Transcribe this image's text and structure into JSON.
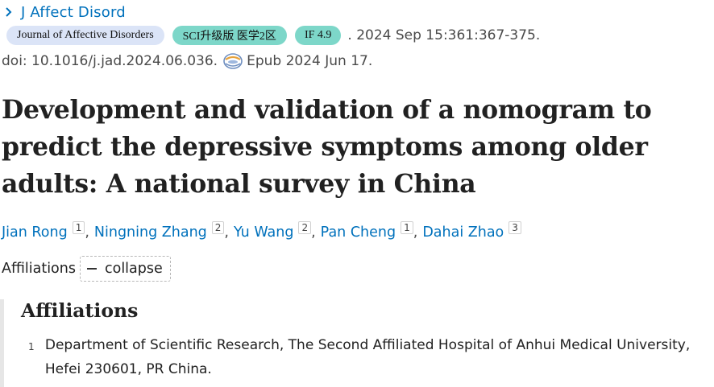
{
  "journal": {
    "abbrev": "J Affect Disord",
    "badges": {
      "journal_name": "Journal of Affective Disorders",
      "sci": "SCI升级版 医学2区",
      "impact_factor": "IF 4.9"
    },
    "citation": ". 2024 Sep 15:361:367-375.",
    "doi": "doi: 10.1016/j.jad.2024.06.036.",
    "epub": "Epub 2024 Jun 17."
  },
  "article": {
    "title": "Development and validation of a nomogram to predict the depressive symptoms among older adults: A national survey in China"
  },
  "authors": [
    {
      "name": "Jian Rong",
      "aff": "1"
    },
    {
      "name": "Ningning Zhang",
      "aff": "2"
    },
    {
      "name": "Yu Wang",
      "aff": "2"
    },
    {
      "name": "Pan Cheng",
      "aff": "1"
    },
    {
      "name": "Dahai Zhao",
      "aff": "3"
    }
  ],
  "separator": ",",
  "affiliations": {
    "label": "Affiliations",
    "toggle_label": "collapse",
    "heading": "Affiliations",
    "items": [
      {
        "num": "1",
        "text": "Department of Scientific Research, The Second Affiliated Hospital of Anhui Medical University, Hefei 230601, PR China."
      }
    ]
  },
  "colors": {
    "link": "#0071bc",
    "journal_badge": "#dbe4f7",
    "sci_badge": "#7dd7c9"
  },
  "icons": {
    "journal_chevron": "chevron-right-icon",
    "epub": "epub-globe-icon",
    "collapse": "minus-icon"
  }
}
